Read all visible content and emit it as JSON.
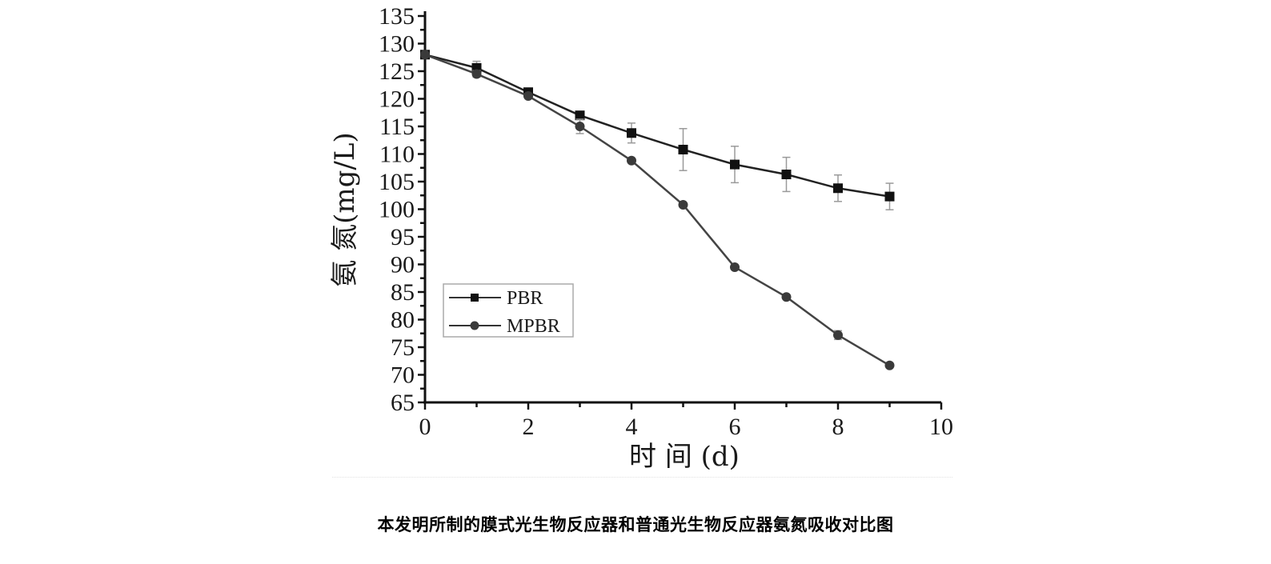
{
  "chart_data": {
    "type": "line",
    "title": "",
    "xlabel": "时 间 (d)",
    "ylabel": "氨 氮(mg/L)",
    "xlim": [
      0,
      10
    ],
    "ylim": [
      65,
      135
    ],
    "xticks": [
      0,
      2,
      4,
      6,
      8,
      10
    ],
    "yticks": [
      65,
      70,
      75,
      80,
      85,
      90,
      95,
      100,
      105,
      110,
      115,
      120,
      125,
      130,
      135
    ],
    "grid": false,
    "legend_position": "lower-left",
    "x": [
      0,
      1,
      2,
      3,
      4,
      5,
      6,
      7,
      8,
      9
    ],
    "series": [
      {
        "name": "PBR",
        "marker": "square",
        "color": "#111111",
        "values": [
          128,
          125.6,
          121.2,
          117.0,
          113.8,
          110.8,
          108.1,
          106.3,
          103.8,
          102.3
        ],
        "error": [
          0.3,
          1.2,
          0.7,
          0.5,
          1.8,
          3.8,
          3.3,
          3.1,
          2.4,
          2.4
        ]
      },
      {
        "name": "MPBR",
        "marker": "circle",
        "color": "#3a3a3a",
        "values": [
          128,
          124.5,
          120.5,
          115.0,
          108.8,
          100.8,
          89.5,
          84.1,
          77.2,
          71.7
        ],
        "error": [
          0.3,
          0.6,
          0.5,
          1.3,
          0.4,
          0.3,
          0.3,
          0.3,
          0.8,
          0.3
        ]
      }
    ]
  },
  "figure": {
    "caption": "本发明所制的膜式光生物反应器和普通光生物反应器氨氮吸收对比图",
    "xlabel": "时 间  (d)",
    "ylabel": "氨   氮(mg/L)",
    "legend": [
      "PBR",
      "MPBR"
    ]
  }
}
